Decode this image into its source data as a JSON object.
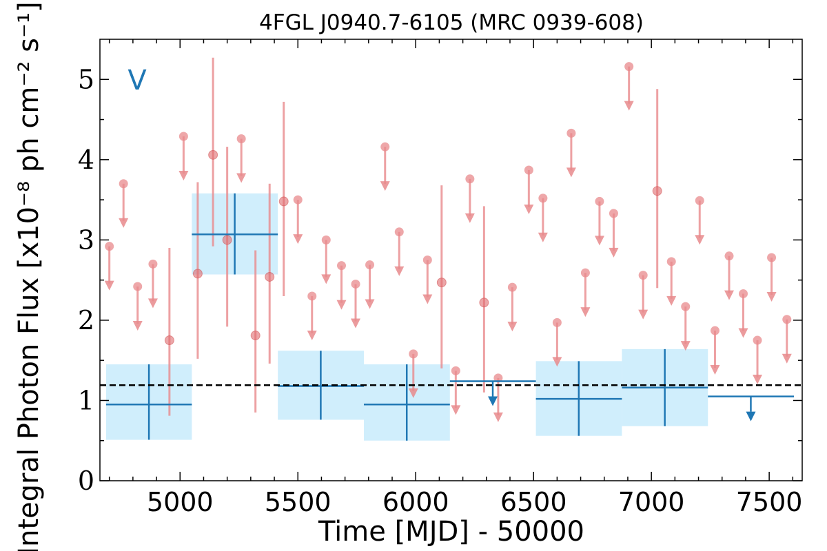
{
  "chart_data": {
    "type": "scatter",
    "title": "4FGL J0940.7-6105 (MRC 0939-608)",
    "xlabel": "Time [MJD] - 50000",
    "ylabel": "Integral Photon Flux [x10⁻⁸ ph cm⁻² s⁻¹]",
    "band_label": "V",
    "xlim": [
      4660,
      7640
    ],
    "ylim": [
      0,
      5.5
    ],
    "xticks": [
      5000,
      5500,
      6000,
      6500,
      7000,
      7500
    ],
    "yticks": [
      0,
      1,
      2,
      3,
      4,
      5
    ],
    "grid": false,
    "reference_level": 1.19,
    "colors": {
      "short_bins": "#e8898c",
      "long_bins": "#1f77b4",
      "long_bin_fill": "#d0eefc",
      "reference_line": "#000000"
    },
    "series": [
      {
        "kind": "short_bins",
        "detections": [
          {
            "x": 4955,
            "y": 1.75,
            "ylo": 0.81,
            "yhi": 2.9
          },
          {
            "x": 5075,
            "y": 2.58,
            "ylo": 1.52,
            "yhi": 3.72
          },
          {
            "x": 5140,
            "y": 4.06,
            "ylo": 2.92,
            "yhi": 5.27
          },
          {
            "x": 5200,
            "y": 3.0,
            "ylo": 1.92,
            "yhi": 4.16
          },
          {
            "x": 5320,
            "y": 1.81,
            "ylo": 0.85,
            "yhi": 2.87
          },
          {
            "x": 5380,
            "y": 2.54,
            "ylo": 1.46,
            "yhi": 3.7
          },
          {
            "x": 5440,
            "y": 3.48,
            "ylo": 2.3,
            "yhi": 4.72
          },
          {
            "x": 6110,
            "y": 2.47,
            "ylo": 1.4,
            "yhi": 3.68
          },
          {
            "x": 6290,
            "y": 2.22,
            "ylo": 1.1,
            "yhi": 3.42
          },
          {
            "x": 7025,
            "y": 3.61,
            "ylo": 2.4,
            "yhi": 4.88
          }
        ],
        "upper_limits": [
          {
            "x": 4700,
            "y": 2.92
          },
          {
            "x": 4760,
            "y": 3.7
          },
          {
            "x": 4820,
            "y": 2.42
          },
          {
            "x": 4885,
            "y": 2.7
          },
          {
            "x": 5015,
            "y": 4.29
          },
          {
            "x": 5260,
            "y": 4.26
          },
          {
            "x": 5500,
            "y": 3.5
          },
          {
            "x": 5560,
            "y": 2.3
          },
          {
            "x": 5620,
            "y": 3.0
          },
          {
            "x": 5685,
            "y": 2.68
          },
          {
            "x": 5745,
            "y": 2.45
          },
          {
            "x": 5805,
            "y": 2.69
          },
          {
            "x": 5870,
            "y": 4.16
          },
          {
            "x": 5930,
            "y": 3.1
          },
          {
            "x": 5990,
            "y": 1.58
          },
          {
            "x": 6050,
            "y": 2.75
          },
          {
            "x": 6170,
            "y": 1.37
          },
          {
            "x": 6230,
            "y": 3.76
          },
          {
            "x": 6350,
            "y": 1.28
          },
          {
            "x": 6410,
            "y": 2.41
          },
          {
            "x": 6480,
            "y": 3.87
          },
          {
            "x": 6540,
            "y": 3.52
          },
          {
            "x": 6600,
            "y": 1.97
          },
          {
            "x": 6660,
            "y": 4.33
          },
          {
            "x": 6720,
            "y": 2.59
          },
          {
            "x": 6780,
            "y": 3.48
          },
          {
            "x": 6840,
            "y": 3.33
          },
          {
            "x": 6905,
            "y": 5.16
          },
          {
            "x": 6965,
            "y": 2.56
          },
          {
            "x": 7085,
            "y": 2.73
          },
          {
            "x": 7145,
            "y": 2.17
          },
          {
            "x": 7205,
            "y": 3.49
          },
          {
            "x": 7270,
            "y": 1.87
          },
          {
            "x": 7330,
            "y": 2.8
          },
          {
            "x": 7390,
            "y": 2.33
          },
          {
            "x": 7450,
            "y": 1.75
          },
          {
            "x": 7510,
            "y": 2.78
          },
          {
            "x": 7575,
            "y": 2.01
          }
        ]
      },
      {
        "kind": "long_bins",
        "detections": [
          {
            "x0": 4686,
            "x1": 5050,
            "xc": 4868,
            "y": 0.95,
            "ylo": 0.51,
            "yhi": 1.45
          },
          {
            "x0": 5050,
            "x1": 5415,
            "xc": 5232,
            "y": 3.07,
            "ylo": 2.57,
            "yhi": 3.58
          },
          {
            "x0": 5415,
            "x1": 5780,
            "xc": 5597,
            "y": 1.18,
            "ylo": 0.76,
            "yhi": 1.62
          },
          {
            "x0": 5780,
            "x1": 6145,
            "xc": 5962,
            "y": 0.95,
            "ylo": 0.5,
            "yhi": 1.45
          },
          {
            "x0": 6510,
            "x1": 6875,
            "xc": 6692,
            "y": 1.02,
            "ylo": 0.56,
            "yhi": 1.49
          },
          {
            "x0": 6875,
            "x1": 7240,
            "xc": 7057,
            "y": 1.16,
            "ylo": 0.68,
            "yhi": 1.64
          }
        ],
        "upper_limits": [
          {
            "x0": 6145,
            "x1": 6510,
            "xc": 6327,
            "y": 1.24
          },
          {
            "x0": 7240,
            "x1": 7605,
            "xc": 7422,
            "y": 1.05
          }
        ]
      }
    ]
  }
}
